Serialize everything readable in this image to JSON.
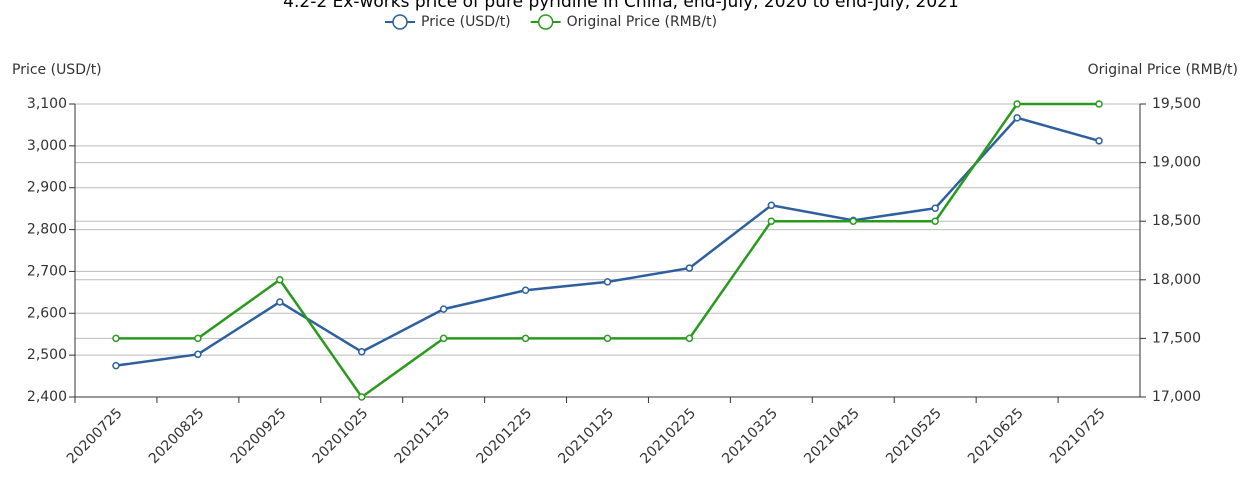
{
  "chart_data": {
    "type": "line",
    "title": "4.2-2 Ex-works price of pure pyridine in China, end-July, 2020 to end-July, 2021",
    "y_label": "Price (USD/t)",
    "y2_label": "Original Price (RMB/t)",
    "categories": [
      "20200725",
      "20200825",
      "20200925",
      "20201025",
      "20201125",
      "20201225",
      "20210125",
      "20210225",
      "20210325",
      "20210425",
      "20210525",
      "20210625",
      "20210725"
    ],
    "series": [
      {
        "name": "Price (USD/t)",
        "color": "#2e5f9e",
        "values": [
          2475,
          2502,
          2627,
          2508,
          2610,
          2655,
          2675,
          2708,
          2858,
          2822,
          2851,
          3067,
          3012
        ]
      },
      {
        "name": "Original Price (RMB/t)",
        "color": "#2a9a1e",
        "axis": "y2",
        "values": [
          17500,
          17500,
          18000,
          17000,
          17500,
          17500,
          17500,
          17500,
          18500,
          18500,
          18500,
          19500,
          19500
        ]
      }
    ],
    "ylim": [
      2400,
      3100
    ],
    "yticks": [
      {
        "value": 2400,
        "label": "2,400"
      },
      {
        "value": 2500,
        "label": "2,500"
      },
      {
        "value": 2600,
        "label": "2,600"
      },
      {
        "value": 2700,
        "label": "2,700"
      },
      {
        "value": 2800,
        "label": "2,800"
      },
      {
        "value": 2900,
        "label": "2,900"
      },
      {
        "value": 3000,
        "label": "3,000"
      },
      {
        "value": 3100,
        "label": "3,100"
      }
    ],
    "y2lim": [
      17000,
      19500
    ],
    "y2ticks": [
      {
        "value": 17000,
        "label": "17,000"
      },
      {
        "value": 17500,
        "label": "17,500"
      },
      {
        "value": 18000,
        "label": "18,000"
      },
      {
        "value": 18500,
        "label": "18,500"
      },
      {
        "value": 19000,
        "label": "19,000"
      },
      {
        "value": 19500,
        "label": "19,500"
      }
    ],
    "grid": true,
    "legend": "top"
  }
}
